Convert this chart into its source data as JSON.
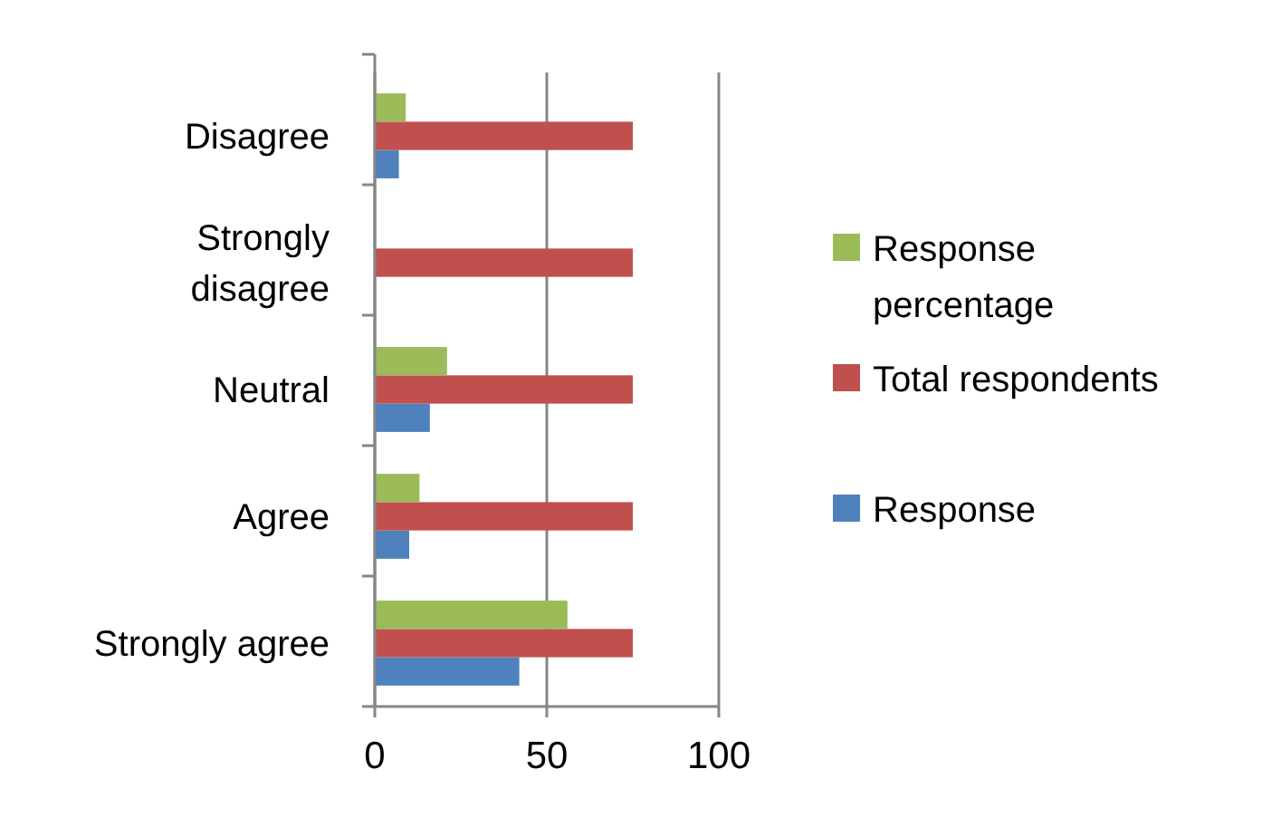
{
  "chart_data": {
    "type": "bar",
    "orientation": "horizontal",
    "categories": [
      "Disagree",
      "Strongly disagree",
      "Neutral",
      "Agree",
      "Strongly agree"
    ],
    "series": [
      {
        "name": "Response",
        "color": "#4f81bd",
        "values": [
          7,
          0,
          16,
          10,
          42
        ]
      },
      {
        "name": "Total respondents",
        "color": "#c0504d",
        "values": [
          75,
          75,
          75,
          75,
          75
        ]
      },
      {
        "name": "Response percentage",
        "color": "#9bbb59",
        "values": [
          9,
          0,
          21,
          13,
          56
        ]
      }
    ],
    "xlim": [
      0,
      100
    ],
    "xticks": [
      0,
      50,
      100
    ],
    "grid": "x",
    "legend": "right"
  }
}
